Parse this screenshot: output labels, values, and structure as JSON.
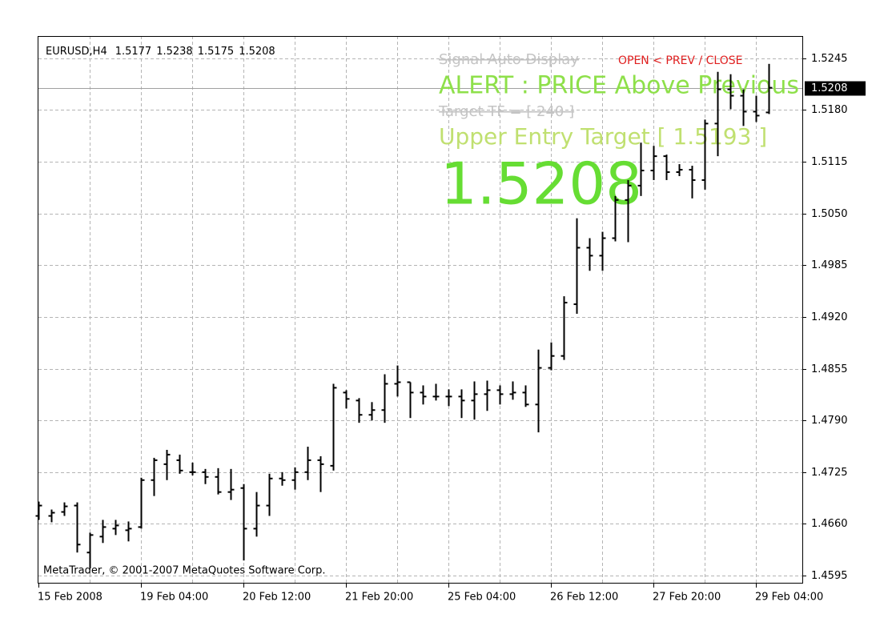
{
  "chart_data": {
    "type": "ohlc",
    "title": "EURUSD,H4",
    "color": "#000000",
    "grid": true,
    "categories": [
      "15 Feb 2008",
      null,
      null,
      null,
      null,
      null,
      null,
      null,
      "19 Feb 04:00",
      null,
      null,
      null,
      null,
      null,
      null,
      null,
      "20 Feb 12:00",
      null,
      null,
      null,
      null,
      null,
      null,
      null,
      "21 Feb 20:00",
      null,
      null,
      null,
      null,
      null,
      null,
      null,
      "25 Feb 04:00",
      null,
      null,
      null,
      null,
      null,
      null,
      null,
      "26 Feb 12:00",
      null,
      null,
      null,
      null,
      null,
      null,
      null,
      "27 Feb 20:00",
      null,
      null,
      null,
      null,
      null,
      null,
      null,
      "29 Feb 04:00",
      null
    ],
    "open": [
      1.467,
      1.467,
      1.4675,
      1.4683,
      1.4624,
      1.4644,
      1.4654,
      1.4652,
      1.4656,
      1.4715,
      1.4735,
      1.474,
      1.4725,
      1.4725,
      1.4719,
      1.47,
      1.4705,
      1.4654,
      1.4683,
      1.4717,
      1.4715,
      1.4725,
      1.474,
      1.4733,
      1.4825,
      1.4815,
      1.4797,
      1.4803,
      1.4836,
      1.4838,
      1.4825,
      1.482,
      1.482,
      1.482,
      1.4815,
      1.4823,
      1.4828,
      1.4823,
      1.4825,
      1.481,
      1.4856,
      1.4871,
      1.4936,
      1.5007,
      1.4997,
      1.5019,
      1.5067,
      1.5085,
      1.5104,
      1.5122,
      1.5102,
      1.5105,
      1.5092,
      1.5163,
      1.5206,
      1.5198,
      1.5178,
      1.5177
    ],
    "high": [
      1.4688,
      1.4678,
      1.4687,
      1.4687,
      1.4649,
      1.4665,
      1.4665,
      1.4663,
      1.4718,
      1.4743,
      1.4753,
      1.4747,
      1.4737,
      1.4729,
      1.473,
      1.4729,
      1.471,
      1.47,
      1.4723,
      1.4725,
      1.4731,
      1.4757,
      1.4745,
      1.4836,
      1.4828,
      1.4818,
      1.4813,
      1.4848,
      1.4859,
      1.4838,
      1.4834,
      1.4836,
      1.4829,
      1.4829,
      1.4839,
      1.484,
      1.4834,
      1.4839,
      1.4834,
      1.4879,
      1.4888,
      1.4946,
      1.5044,
      1.5019,
      1.5027,
      1.5072,
      1.5092,
      1.5139,
      1.5135,
      1.5124,
      1.5112,
      1.511,
      1.5168,
      1.5228,
      1.5225,
      1.5206,
      1.5198,
      1.5238
    ],
    "low": [
      1.4665,
      1.4662,
      1.467,
      1.4624,
      1.4604,
      1.4636,
      1.4646,
      1.4638,
      1.4654,
      1.4695,
      1.4715,
      1.4723,
      1.4721,
      1.471,
      1.4697,
      1.469,
      1.4614,
      1.4644,
      1.467,
      1.4708,
      1.4703,
      1.4715,
      1.47,
      1.4727,
      1.4805,
      1.4787,
      1.479,
      1.4787,
      1.482,
      1.4793,
      1.481,
      1.4815,
      1.4808,
      1.4793,
      1.4791,
      1.4802,
      1.481,
      1.4816,
      1.4807,
      1.4775,
      1.4853,
      1.4866,
      1.4924,
      1.4978,
      1.4978,
      1.5015,
      1.5014,
      1.5072,
      1.5092,
      1.5092,
      1.5097,
      1.5069,
      1.508,
      1.5122,
      1.5181,
      1.516,
      1.5165,
      1.5175
    ],
    "close": [
      1.4683,
      1.4674,
      1.4682,
      1.4634,
      1.4646,
      1.4656,
      1.4658,
      1.4654,
      1.4715,
      1.474,
      1.4747,
      1.4727,
      1.4725,
      1.4719,
      1.47,
      1.4703,
      1.4654,
      1.4683,
      1.4717,
      1.4715,
      1.4725,
      1.474,
      1.4735,
      1.4831,
      1.4817,
      1.4797,
      1.4803,
      1.4836,
      1.4838,
      1.4825,
      1.482,
      1.482,
      1.482,
      1.4815,
      1.4823,
      1.4828,
      1.4823,
      1.4825,
      1.481,
      1.4856,
      1.4871,
      1.4938,
      1.5007,
      1.4997,
      1.5019,
      1.5067,
      1.5085,
      1.5104,
      1.5122,
      1.5102,
      1.5105,
      1.5092,
      1.5163,
      1.5206,
      1.5198,
      1.5178,
      1.5173,
      1.5208
    ],
    "ylim": [
      1.4586,
      1.5273
    ],
    "yticks": [
      1.5245,
      {
        "value": 1.518,
        "label": "1.5180"
      },
      1.5115,
      {
        "value": 1.505,
        "label": "1.5050"
      },
      1.4985,
      {
        "value": 1.492,
        "label": "1.4920"
      },
      1.4855,
      {
        "value": 1.479,
        "label": "1.4790"
      },
      1.4725,
      {
        "value": 1.466,
        "label": "1.4660"
      },
      1.4595
    ],
    "annotations": {
      "signal": "Signal Auto Display",
      "mode": "OPEN < PREV / CLOSE",
      "alert": "ALERT : PRICE Above Previous",
      "target_tf": "Target TF = [ 240 ]",
      "entry_target": "Upper Entry Target [ 1.5193 ]"
    },
    "copyright": "MetaTrader, © 2001-2007 MetaQuotes Software Corp."
  }
}
